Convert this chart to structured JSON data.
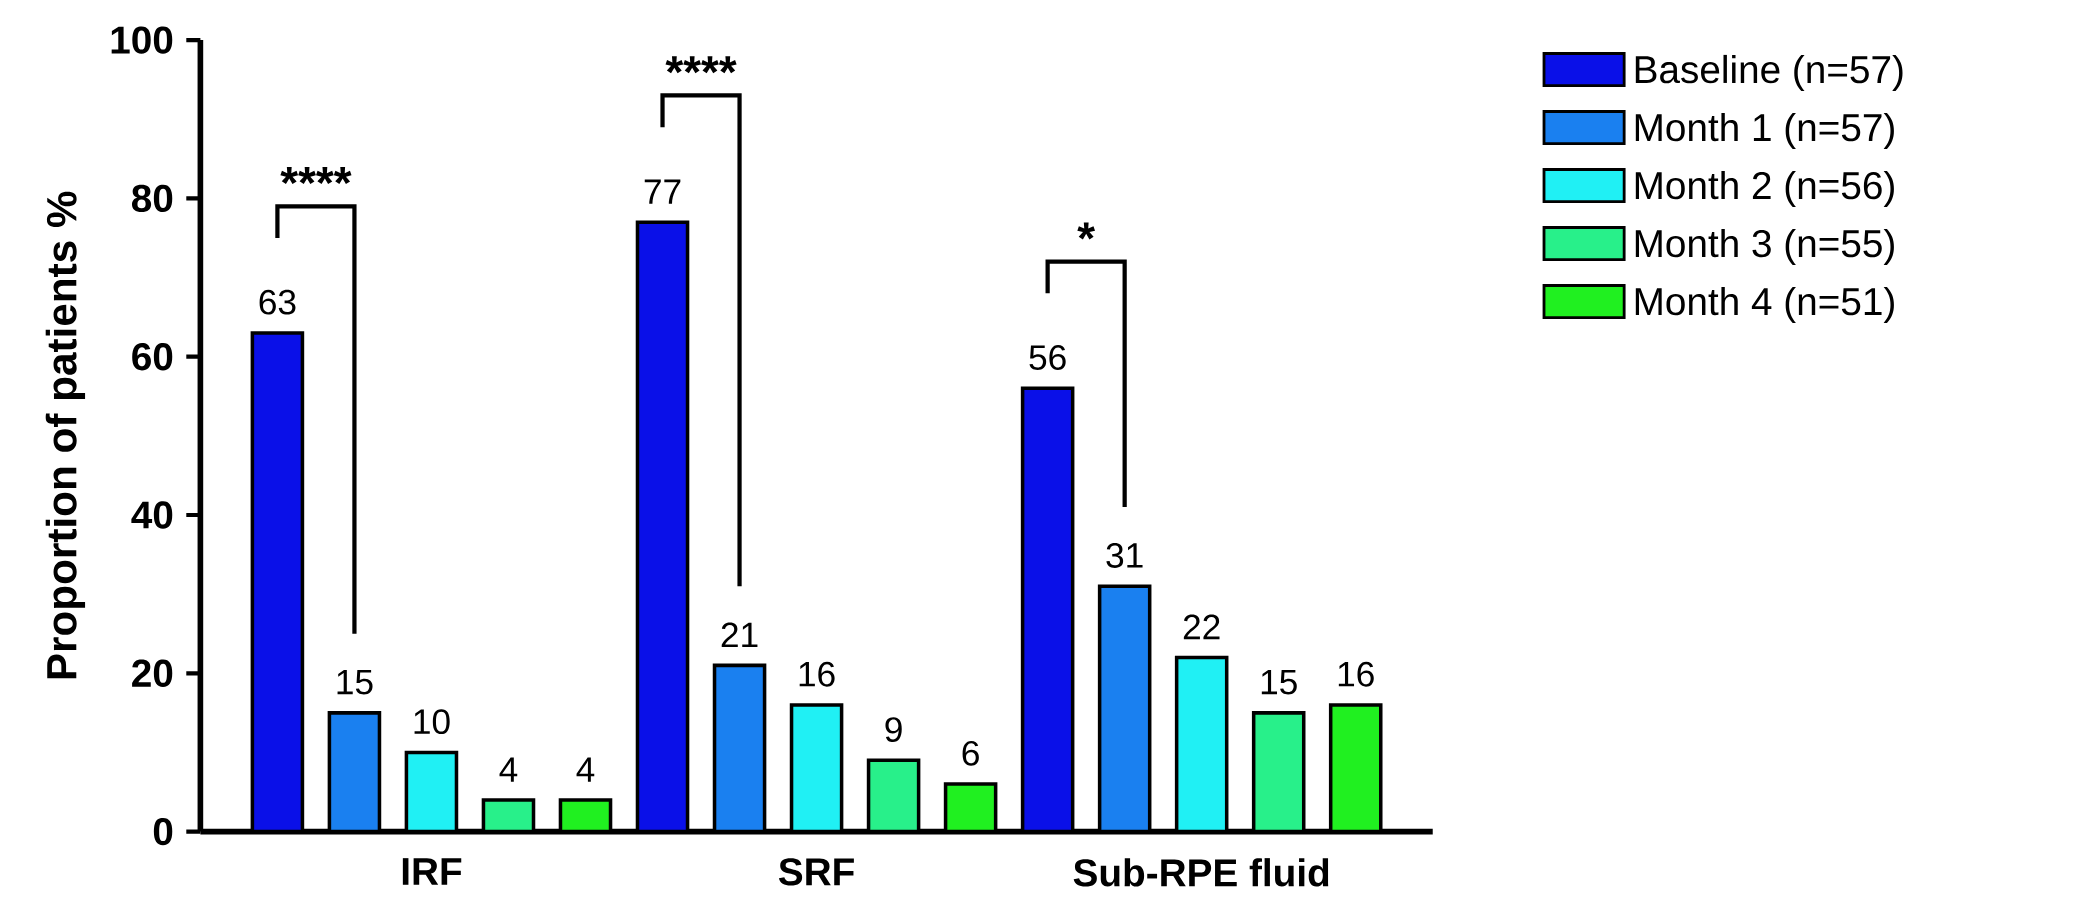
{
  "chart_data": {
    "type": "bar",
    "ylabel": "Proportion of patients %",
    "categories": [
      "IRF",
      "SRF",
      "Sub-RPE fluid"
    ],
    "series": [
      {
        "name": "Baseline (n=57)",
        "color": "#0a10e8",
        "values": [
          63,
          77,
          56
        ]
      },
      {
        "name": "Month 1 (n=57)",
        "color": "#1a80f0",
        "values": [
          15,
          21,
          31
        ]
      },
      {
        "name": "Month 2 (n=56)",
        "color": "#20f0f4",
        "values": [
          10,
          16,
          22
        ]
      },
      {
        "name": "Month 3 (n=55)",
        "color": "#28f08a",
        "values": [
          4,
          9,
          15
        ]
      },
      {
        "name": "Month 4 (n=51)",
        "color": "#20f020",
        "values": [
          4,
          6,
          16
        ]
      }
    ],
    "ylim": [
      0,
      100
    ],
    "yticks": [
      0,
      20,
      40,
      60,
      80,
      100
    ],
    "data_labels": true,
    "legend": "right",
    "grid": false,
    "annotations": [
      "****",
      "****",
      "*"
    ]
  }
}
